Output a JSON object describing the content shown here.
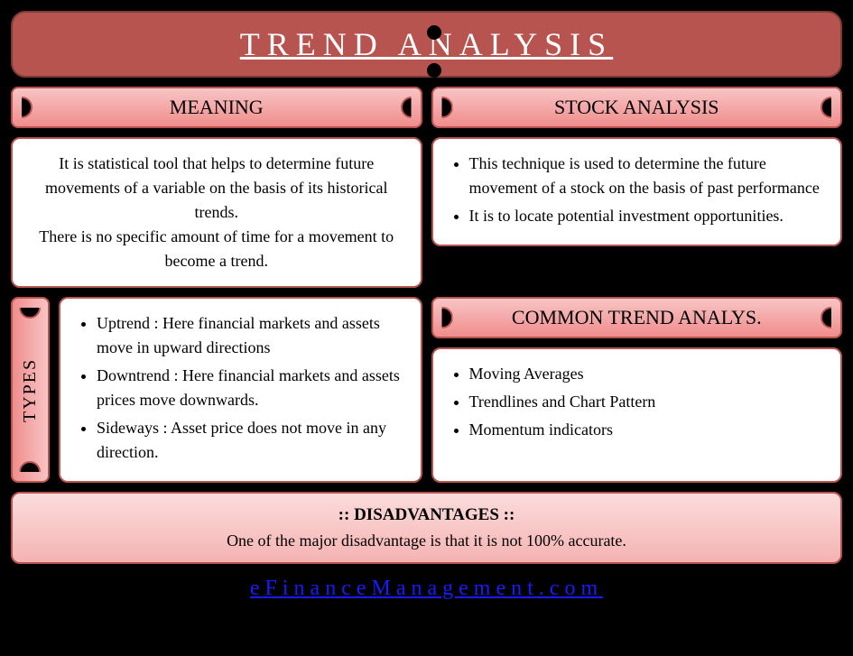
{
  "title": "TREND ANALYSIS",
  "meaning": {
    "header": "MEANING",
    "text1": "It is statistical tool that helps to determine future movements of a variable on the basis of its historical trends.",
    "text2": "There is no specific amount of time for a movement to become a trend."
  },
  "stock": {
    "header": "STOCK ANALYSIS",
    "items": [
      "This technique is used to determine the future movement of a stock on the basis of past performance",
      "It is to locate potential investment opportunities."
    ]
  },
  "types": {
    "header": "TYPES",
    "items": [
      "Uptrend : Here financial markets and assets move in upward directions",
      "Downtrend : Here financial markets and assets prices move downwards.",
      "Sideways : Asset price does not move in any direction."
    ]
  },
  "common": {
    "header": "COMMON TREND ANALYS.",
    "items": [
      "Moving Averages",
      "Trendlines and Chart Pattern",
      "Momentum indicators"
    ]
  },
  "disadvantages": {
    "header": ":: DISADVANTAGES ::",
    "text": "One of the major disadvantage is that it is not 100% accurate."
  },
  "footer": "eFinanceManagement.com",
  "colors": {
    "banner_bg": "#b85450",
    "border": "#b85450",
    "gradient_light": "#f8c4c4",
    "gradient_dark": "#f08d8d",
    "page_bg": "#000000",
    "box_bg": "#ffffff",
    "link_color": "#1a1aff"
  }
}
